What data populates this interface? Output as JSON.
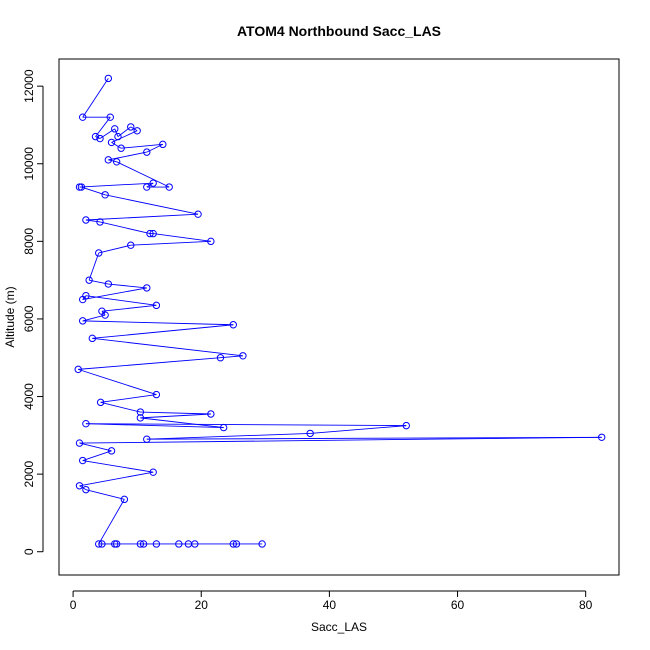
{
  "chart_data": {
    "type": "line",
    "title": "ATOM4 Northbound Sacc_LAS",
    "xlabel": "Sacc_LAS",
    "ylabel": "Altitude (m)",
    "xlim": [
      -2.2,
      85.2
    ],
    "ylim": [
      -600,
      12700
    ],
    "xticks": [
      0,
      20,
      40,
      60,
      80
    ],
    "yticks": [
      0,
      2000,
      4000,
      6000,
      8000,
      10000,
      12000
    ],
    "series": [
      {
        "color": "#0000ff",
        "marker": "open-circle",
        "points": [
          [
            5.5,
            12200
          ],
          [
            1.5,
            11200
          ],
          [
            5.8,
            11200
          ],
          [
            3.5,
            10700
          ],
          [
            4.2,
            10650
          ],
          [
            6.5,
            10900
          ],
          [
            7.0,
            10700
          ],
          [
            9.0,
            10950
          ],
          [
            10.0,
            10850
          ],
          [
            6.0,
            10550
          ],
          [
            7.5,
            10400
          ],
          [
            14.0,
            10500
          ],
          [
            11.5,
            10300
          ],
          [
            5.5,
            10100
          ],
          [
            6.8,
            10050
          ],
          [
            15.0,
            9400
          ],
          [
            11.5,
            9400
          ],
          [
            12.5,
            9500
          ],
          [
            1.0,
            9400
          ],
          [
            1.3,
            9400
          ],
          [
            5.0,
            9200
          ],
          [
            19.5,
            8700
          ],
          [
            2.0,
            8550
          ],
          [
            4.2,
            8500
          ],
          [
            12.0,
            8200
          ],
          [
            12.5,
            8200
          ],
          [
            21.5,
            8000
          ],
          [
            9.0,
            7900
          ],
          [
            4.0,
            7700
          ],
          [
            2.5,
            7000
          ],
          [
            5.5,
            6900
          ],
          [
            11.5,
            6800
          ],
          [
            1.5,
            6500
          ],
          [
            2.0,
            6600
          ],
          [
            13.0,
            6350
          ],
          [
            4.5,
            6200
          ],
          [
            5.0,
            6100
          ],
          [
            1.5,
            5950
          ],
          [
            25.0,
            5850
          ],
          [
            3.0,
            5500
          ],
          [
            26.5,
            5050
          ],
          [
            23.0,
            5000
          ],
          [
            0.8,
            4700
          ],
          [
            13.0,
            4050
          ],
          [
            4.3,
            3850
          ],
          [
            10.5,
            3600
          ],
          [
            21.5,
            3550
          ],
          [
            10.5,
            3450
          ],
          [
            23.5,
            3200
          ],
          [
            2.0,
            3300
          ],
          [
            52.0,
            3250
          ],
          [
            37.0,
            3050
          ],
          [
            11.5,
            2900
          ],
          [
            82.5,
            2950
          ],
          [
            1.0,
            2800
          ],
          [
            6.0,
            2600
          ],
          [
            1.5,
            2350
          ],
          [
            12.5,
            2050
          ],
          [
            1.0,
            1700
          ],
          [
            2.0,
            1600
          ],
          [
            8.0,
            1350
          ],
          [
            4.0,
            200
          ],
          [
            4.5,
            200
          ],
          [
            6.5,
            200
          ],
          [
            6.8,
            200
          ],
          [
            10.5,
            200
          ],
          [
            11.0,
            200
          ],
          [
            13.0,
            200
          ],
          [
            16.5,
            200
          ],
          [
            18.0,
            200
          ],
          [
            19.0,
            200
          ],
          [
            25.0,
            200
          ],
          [
            25.5,
            200
          ],
          [
            29.5,
            200
          ]
        ]
      }
    ]
  }
}
